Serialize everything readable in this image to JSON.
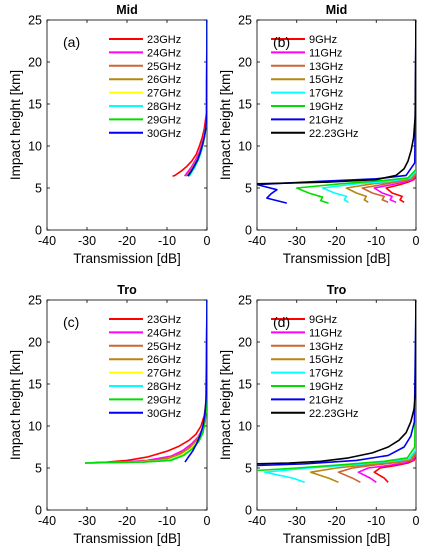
{
  "figure": {
    "ylabel": "Impact height [km]",
    "xlabel": "Transmission [dB]"
  },
  "chart_data": [
    {
      "type": "line",
      "panel_label": "(a)",
      "title": "Mid",
      "xlabel": "Transmission [dB]",
      "ylabel": "Impact height [km]",
      "xlim": [
        -40,
        0
      ],
      "ylim": [
        0,
        25
      ],
      "xticks": [
        "-40",
        "-30",
        "-20",
        "-10",
        "0"
      ],
      "yticks": [
        "0",
        "5",
        "10",
        "15",
        "20",
        "25"
      ],
      "grid": false,
      "legend_position": "top-left",
      "series": [
        {
          "name": "23GHz",
          "color": "#ff0000",
          "x": [
            -8.6,
            -8.0,
            -6.5,
            -5.0,
            -3.8,
            -2.7,
            -1.9,
            -1.2,
            -0.7,
            -0.4,
            -0.15,
            0
          ],
          "y": [
            6.4,
            6.5,
            7.0,
            7.6,
            8.2,
            9.0,
            10.0,
            11.0,
            12.0,
            13.0,
            14.0,
            25
          ]
        },
        {
          "name": "24GHz",
          "color": "#ff00ff",
          "x": [
            -5.6,
            -5.0,
            -3.9,
            -2.9,
            -2.0,
            -1.3,
            -0.8,
            -0.4,
            -0.15,
            0
          ],
          "y": [
            6.4,
            6.8,
            7.5,
            8.3,
            9.2,
            10.2,
            11.2,
            12.2,
            13.5,
            25
          ]
        },
        {
          "name": "25GHz",
          "color": "#cc6633",
          "x": [
            -5.2,
            -4.6,
            -3.6,
            -2.6,
            -1.8,
            -1.2,
            -0.7,
            -0.35,
            -0.1,
            0
          ],
          "y": [
            6.4,
            6.8,
            7.5,
            8.3,
            9.2,
            10.2,
            11.2,
            12.2,
            13.5,
            25
          ]
        },
        {
          "name": "26GHz",
          "color": "#b8860b",
          "x": [
            -4.7,
            -4.2,
            -3.3,
            -2.4,
            -1.7,
            -1.1,
            -0.6,
            -0.3,
            -0.1,
            0
          ],
          "y": [
            6.4,
            6.8,
            7.5,
            8.3,
            9.2,
            10.2,
            11.2,
            12.2,
            13.5,
            25
          ]
        },
        {
          "name": "27GHz",
          "color": "#ffff00",
          "x": [
            -4.5,
            -4.0,
            -3.1,
            -2.3,
            -1.6,
            -1.0,
            -0.6,
            -0.3,
            -0.1,
            0
          ],
          "y": [
            6.4,
            6.8,
            7.5,
            8.3,
            9.2,
            10.2,
            11.2,
            12.2,
            13.5,
            25
          ]
        },
        {
          "name": "28GHz",
          "color": "#00ffff",
          "x": [
            -4.4,
            -3.9,
            -3.0,
            -2.2,
            -1.5,
            -1.0,
            -0.6,
            -0.3,
            -0.1,
            0
          ],
          "y": [
            6.4,
            6.8,
            7.5,
            8.3,
            9.2,
            10.2,
            11.2,
            12.2,
            13.5,
            25
          ]
        },
        {
          "name": "29GHz",
          "color": "#00dd00",
          "x": [
            -4.6,
            -4.1,
            -3.2,
            -2.3,
            -1.6,
            -1.0,
            -0.6,
            -0.3,
            -0.1,
            0
          ],
          "y": [
            6.4,
            6.8,
            7.5,
            8.3,
            9.2,
            10.2,
            11.2,
            12.2,
            13.5,
            25
          ]
        },
        {
          "name": "30GHz",
          "color": "#0000ee",
          "x": [
            -4.8,
            -4.2,
            -3.3,
            -2.4,
            -1.7,
            -1.1,
            -0.6,
            -0.3,
            -0.1,
            0
          ],
          "y": [
            6.4,
            6.8,
            7.5,
            8.3,
            9.2,
            10.2,
            11.2,
            12.2,
            13.5,
            25
          ]
        }
      ]
    },
    {
      "type": "line",
      "panel_label": "(b)",
      "title": "Mid",
      "xlabel": "Transmission [dB]",
      "ylabel": "Impact height [km]",
      "xlim": [
        -40,
        0
      ],
      "ylim": [
        0,
        25
      ],
      "xticks": [
        "-40",
        "-30",
        "-20",
        "-10",
        "0"
      ],
      "yticks": [
        "0",
        "5",
        "10",
        "15",
        "20",
        "25"
      ],
      "grid": false,
      "legend_position": "top-left",
      "series": [
        {
          "name": "9GHz",
          "color": "#ff0000",
          "x": [
            -3.0,
            -4.0,
            -3.5,
            -6.0,
            -7.5,
            -4.0,
            -2.0,
            -0.5,
            0,
            0
          ],
          "y": [
            3.3,
            3.6,
            4.0,
            4.4,
            5.0,
            5.4,
            5.7,
            6.0,
            6.5,
            25
          ]
        },
        {
          "name": "11GHz",
          "color": "#ff00ff",
          "x": [
            -5.0,
            -6.5,
            -6.0,
            -8.5,
            -10.5,
            -6.0,
            -3.0,
            -0.7,
            0,
            0
          ],
          "y": [
            3.3,
            3.6,
            4.0,
            4.4,
            5.0,
            5.4,
            5.7,
            6.0,
            6.6,
            25
          ]
        },
        {
          "name": "13GHz",
          "color": "#cc6633",
          "x": [
            -7.0,
            -8.5,
            -8.0,
            -11.0,
            -13.5,
            -8.5,
            -4.0,
            -1.0,
            0,
            0
          ],
          "y": [
            3.3,
            3.6,
            4.0,
            4.4,
            5.0,
            5.4,
            5.8,
            6.1,
            6.7,
            25
          ]
        },
        {
          "name": "15GHz",
          "color": "#b8860b",
          "x": [
            -12.0,
            -13.0,
            -12.5,
            -15.0,
            -17.5,
            -11.0,
            -5.0,
            -1.2,
            0,
            0
          ],
          "y": [
            3.3,
            3.6,
            4.0,
            4.4,
            5.0,
            5.5,
            5.8,
            6.1,
            6.8,
            25
          ]
        },
        {
          "name": "17GHz",
          "color": "#00ffff",
          "x": [
            -17.0,
            -18.0,
            -17.5,
            -20.5,
            -23.5,
            -15.0,
            -6.5,
            -1.5,
            0,
            0
          ],
          "y": [
            3.3,
            3.6,
            4.0,
            4.4,
            5.0,
            5.5,
            5.8,
            6.2,
            7.0,
            25
          ]
        },
        {
          "name": "19GHz",
          "color": "#00dd00",
          "x": [
            -22.0,
            -24.0,
            -23.5,
            -27.0,
            -30.0,
            -19.0,
            -8.0,
            -2.0,
            0,
            0
          ],
          "y": [
            3.2,
            3.5,
            3.9,
            4.4,
            5.0,
            5.5,
            5.9,
            6.2,
            7.2,
            25
          ]
        },
        {
          "name": "21GHz",
          "color": "#0000ee",
          "x": [
            -32.5,
            -35.0,
            -37.5,
            -36.5,
            -35.0,
            -40.0,
            -24.0,
            -10.0,
            -2.5,
            -0.3,
            0
          ],
          "y": [
            3.2,
            3.5,
            3.8,
            4.3,
            4.8,
            5.4,
            5.8,
            6.1,
            6.5,
            8.0,
            25
          ]
        },
        {
          "name": "22.23GHz",
          "color": "#000000",
          "x": [
            -40.0,
            -22.0,
            -10.0,
            -5.0,
            -3.0,
            -2.0,
            -1.2,
            -0.6,
            -0.2,
            0
          ],
          "y": [
            5.5,
            5.7,
            6.0,
            6.5,
            7.3,
            8.2,
            9.5,
            11.0,
            13.5,
            25
          ]
        }
      ]
    },
    {
      "type": "line",
      "panel_label": "(c)",
      "title": "Tro",
      "xlabel": "Transmission [dB]",
      "ylabel": "Impact height [km]",
      "xlim": [
        -40,
        0
      ],
      "ylim": [
        0,
        25
      ],
      "xticks": [
        "-40",
        "-30",
        "-20",
        "-10",
        "0"
      ],
      "yticks": [
        "0",
        "5",
        "10",
        "15",
        "20",
        "25"
      ],
      "grid": false,
      "legend_position": "top-left",
      "series": [
        {
          "name": "23GHz",
          "color": "#ff0000",
          "x": [
            -30.5,
            -25.0,
            -20.0,
            -15.0,
            -10.0,
            -7.0,
            -4.5,
            -2.8,
            -1.5,
            -0.7,
            -0.2,
            0
          ],
          "y": [
            5.6,
            5.7,
            5.9,
            6.3,
            7.0,
            7.6,
            8.3,
            9.0,
            10.0,
            11.2,
            13.0,
            25
          ]
        },
        {
          "name": "24GHz",
          "color": "#ff00ff",
          "x": [
            -30.5,
            -22.0,
            -15.0,
            -9.0,
            -6.0,
            -3.8,
            -2.2,
            -1.2,
            -0.5,
            -0.15,
            0
          ],
          "y": [
            5.6,
            5.7,
            5.9,
            6.4,
            7.1,
            7.9,
            8.7,
            9.6,
            10.8,
            12.5,
            25
          ]
        },
        {
          "name": "25GHz",
          "color": "#cc6633",
          "x": [
            -30.5,
            -20.0,
            -13.0,
            -8.0,
            -5.0,
            -3.0,
            -1.7,
            -0.8,
            -0.3,
            0
          ],
          "y": [
            5.6,
            5.7,
            5.9,
            6.4,
            7.2,
            8.1,
            9.0,
            10.2,
            11.7,
            25
          ]
        },
        {
          "name": "26GHz",
          "color": "#b8860b",
          "x": [
            -30.5,
            -18.0,
            -11.0,
            -7.0,
            -4.3,
            -2.5,
            -1.3,
            -0.6,
            -0.2,
            0
          ],
          "y": [
            5.6,
            5.7,
            5.9,
            6.5,
            7.3,
            8.2,
            9.2,
            10.5,
            12.0,
            25
          ]
        },
        {
          "name": "27GHz",
          "color": "#ffff00",
          "x": [
            -30.5,
            -17.0,
            -10.0,
            -6.5,
            -4.0,
            -2.3,
            -1.2,
            -0.5,
            -0.2,
            0
          ],
          "y": [
            5.6,
            5.7,
            5.9,
            6.5,
            7.3,
            8.2,
            9.2,
            10.5,
            12.0,
            25
          ]
        },
        {
          "name": "28GHz",
          "color": "#00ffff",
          "x": [
            -30.5,
            -16.0,
            -9.5,
            -6.0,
            -3.7,
            -2.1,
            -1.1,
            -0.5,
            -0.2,
            0
          ],
          "y": [
            5.6,
            5.7,
            5.9,
            6.5,
            7.3,
            8.2,
            9.2,
            10.5,
            12.0,
            25
          ]
        },
        {
          "name": "29GHz",
          "color": "#00dd00",
          "x": [
            -30.5,
            -16.0,
            -9.0,
            -5.8,
            -3.6,
            -2.0,
            -1.0,
            -0.5,
            -0.2,
            0
          ],
          "y": [
            5.6,
            5.7,
            5.9,
            6.5,
            7.3,
            8.2,
            9.2,
            10.5,
            12.0,
            25
          ]
        },
        {
          "name": "30GHz",
          "color": "#0000ee",
          "x": [
            -5.5,
            -4.8,
            -3.6,
            -2.6,
            -1.7,
            -1.0,
            -0.5,
            -0.2,
            0
          ],
          "y": [
            5.7,
            6.2,
            7.0,
            7.9,
            8.9,
            10.0,
            11.5,
            13.5,
            25
          ]
        }
      ]
    },
    {
      "type": "line",
      "panel_label": "(d)",
      "title": "Tro",
      "xlabel": "Transmission [dB]",
      "ylabel": "Impact height [km]",
      "xlim": [
        -40,
        0
      ],
      "ylim": [
        0,
        25
      ],
      "xticks": [
        "-40",
        "-30",
        "-20",
        "-10",
        "0"
      ],
      "yticks": [
        "0",
        "5",
        "10",
        "15",
        "20",
        "25"
      ],
      "grid": false,
      "legend_position": "top-left",
      "series": [
        {
          "name": "9GHz",
          "color": "#ff0000",
          "x": [
            -7.0,
            -8.0,
            -10.5,
            -9.0,
            -5.0,
            -2.0,
            -0.5,
            0,
            0
          ],
          "y": [
            3.3,
            3.8,
            4.5,
            5.0,
            5.3,
            5.6,
            5.9,
            6.5,
            25
          ]
        },
        {
          "name": "11GHz",
          "color": "#ff00ff",
          "x": [
            -10.0,
            -11.5,
            -14.5,
            -12.0,
            -7.0,
            -3.0,
            -0.8,
            0,
            0
          ],
          "y": [
            3.3,
            3.8,
            4.5,
            5.0,
            5.3,
            5.6,
            5.9,
            6.6,
            25
          ]
        },
        {
          "name": "13GHz",
          "color": "#cc6633",
          "x": [
            -14.0,
            -16.0,
            -19.5,
            -16.0,
            -9.5,
            -4.0,
            -1.0,
            0,
            0
          ],
          "y": [
            3.3,
            3.8,
            4.5,
            5.0,
            5.4,
            5.7,
            6.0,
            6.8,
            25
          ]
        },
        {
          "name": "15GHz",
          "color": "#b8860b",
          "x": [
            -19.5,
            -22.0,
            -26.5,
            -20.0,
            -12.0,
            -5.0,
            -1.3,
            0,
            0
          ],
          "y": [
            3.3,
            3.8,
            4.5,
            5.0,
            5.4,
            5.7,
            6.0,
            7.0,
            25
          ]
        },
        {
          "name": "17GHz",
          "color": "#00ffff",
          "x": [
            -28.0,
            -31.0,
            -38.0,
            -27.0,
            -15.0,
            -6.5,
            -1.7,
            0,
            0
          ],
          "y": [
            3.3,
            3.8,
            4.5,
            5.0,
            5.4,
            5.8,
            6.1,
            7.2,
            25
          ]
        },
        {
          "name": "19GHz",
          "color": "#00dd00",
          "x": [
            -40.0,
            -30.0,
            -18.0,
            -8.0,
            -2.2,
            -0.3,
            0
          ],
          "y": [
            4.7,
            5.0,
            5.4,
            5.8,
            6.2,
            7.5,
            25
          ]
        },
        {
          "name": "21GHz",
          "color": "#0000ee",
          "x": [
            -40.0,
            -28.0,
            -15.0,
            -7.0,
            -3.0,
            -1.3,
            -0.4,
            0
          ],
          "y": [
            5.3,
            5.5,
            5.9,
            6.5,
            7.5,
            8.8,
            10.5,
            25
          ]
        },
        {
          "name": "22.23GHz",
          "color": "#000000",
          "x": [
            -40.0,
            -32.0,
            -24.0,
            -17.0,
            -11.0,
            -7.0,
            -4.3,
            -2.5,
            -1.3,
            -0.5,
            -0.1,
            0
          ],
          "y": [
            5.5,
            5.6,
            5.8,
            6.2,
            6.8,
            7.5,
            8.3,
            9.2,
            10.5,
            12.0,
            14.0,
            25
          ]
        }
      ]
    }
  ]
}
